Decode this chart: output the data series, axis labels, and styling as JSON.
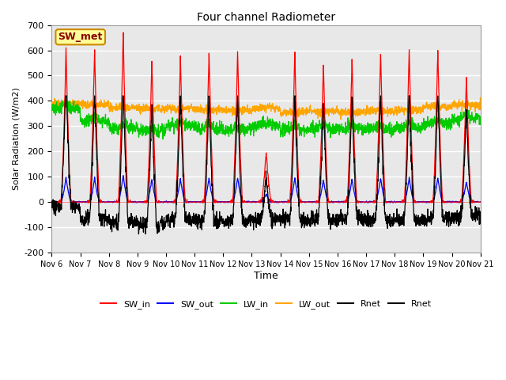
{
  "title": "Four channel Radiometer",
  "xlabel": "Time",
  "ylabel": "Solar Radiation (W/m2)",
  "annotation": "SW_met",
  "ylim": [
    -200,
    700
  ],
  "yticks": [
    -200,
    -100,
    0,
    100,
    200,
    300,
    400,
    500,
    600,
    700
  ],
  "x_labels": [
    "Nov 6",
    "Nov 7",
    "Nov 8",
    "Nov 9",
    "Nov 10",
    "Nov 11",
    "Nov 12",
    "Nov 13",
    "Nov 14",
    "Nov 15",
    "Nov 16",
    "Nov 17",
    "Nov 18",
    "Nov 19",
    "Nov 20",
    "Nov 21"
  ],
  "legend_labels": [
    "SW_in",
    "SW_out",
    "LW_in",
    "LW_out",
    "Rnet",
    "Rnet"
  ],
  "legend_colors": [
    "#ff0000",
    "#0000ff",
    "#00cc00",
    "#ffa500",
    "#000000",
    "#000000"
  ],
  "legend_styles": [
    "-",
    "-",
    "-",
    "-",
    "-",
    "-"
  ],
  "background_color": "#ffffff",
  "plot_bg_color": "#e8e8e8",
  "grid_color": "#ffffff",
  "annotation_bg": "#ffff99",
  "annotation_border": "#cc8800",
  "n_days": 15,
  "n_pts_per_day": 144
}
